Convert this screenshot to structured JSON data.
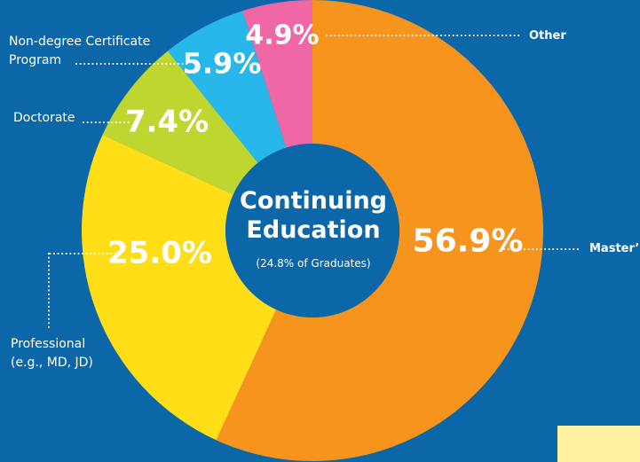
{
  "chart_data": {
    "type": "donut",
    "title": "Continuing\nEducation",
    "subtitle": "(24.8% of Graduates)",
    "categories": [
      "Master’s",
      "Professional\n(e.g., MD, JD)",
      "Doctorate",
      "Non-degree Certificate\nProgram",
      "Other"
    ],
    "values": [
      56.9,
      25.0,
      7.4,
      5.9,
      4.9
    ],
    "value_labels": [
      "56.9%",
      "25.0%",
      "7.4%",
      "5.9%",
      "4.9%"
    ],
    "colors": [
      "#f7941d",
      "#ffde17",
      "#bfd630",
      "#27b7ea",
      "#f067a6"
    ]
  }
}
